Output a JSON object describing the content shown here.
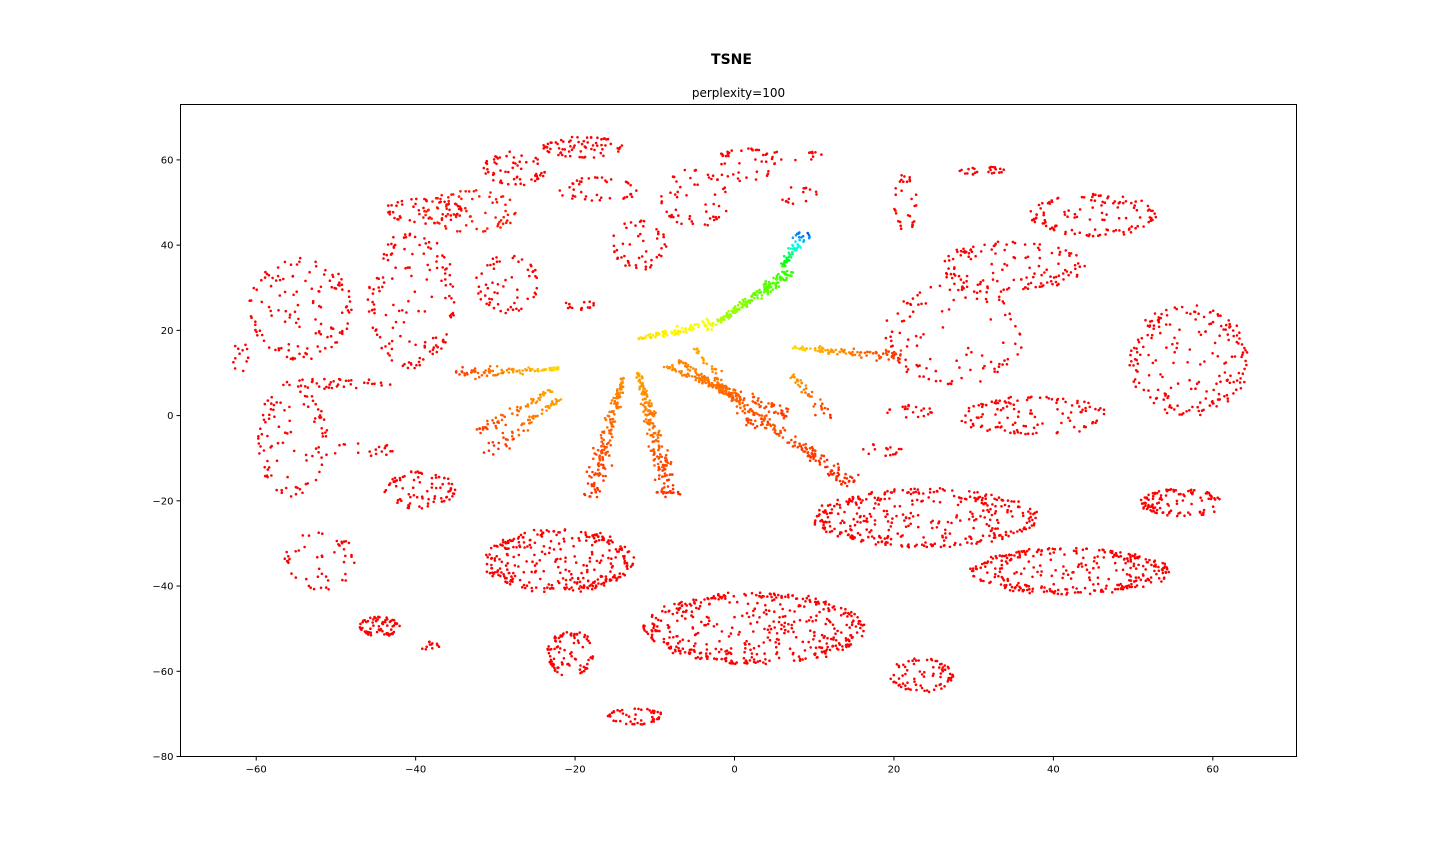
{
  "chart_data": {
    "type": "scatter",
    "title": "TSNE",
    "subtitle": "perplexity=100",
    "xlabel": "",
    "ylabel": "",
    "xlim": [
      -69.5,
      70.5
    ],
    "ylim": [
      -80,
      73
    ],
    "x_ticks": [
      -60,
      -40,
      -20,
      0,
      20,
      40,
      60
    ],
    "x_tick_labels": [
      "−60",
      "−40",
      "−20",
      "0",
      "20",
      "40",
      "60"
    ],
    "y_ticks": [
      60,
      40,
      20,
      0,
      -20,
      -40,
      -60,
      -80
    ],
    "y_tick_labels": [
      "60",
      "40",
      "20",
      "0",
      "−20",
      "−40",
      "−60",
      "−80"
    ],
    "grid": false,
    "legend": "none",
    "colormap": "rainbow (red = low value, violet = high value)",
    "colors": {
      "dominant": "#ff0000",
      "mid": "#ff8000",
      "yellow": "#ffff00",
      "green": "#40ff00",
      "cyan": "#00ffff",
      "violet": "#4000ff"
    },
    "clusters": [
      {
        "x": -54.5,
        "y": 25,
        "w": 6.5,
        "h": 12,
        "n": 130,
        "color_value": 0.0
      },
      {
        "x": -40.5,
        "y": 27,
        "w": 5.5,
        "h": 16,
        "n": 140,
        "color_value": 0.0
      },
      {
        "x": -62.0,
        "y": 14.5,
        "w": 1.0,
        "h": 5,
        "n": 12,
        "color_value": 0.0
      },
      {
        "x": -50.0,
        "y": 7.5,
        "w": 7.0,
        "h": 1.2,
        "n": 40,
        "color_value": 0.0
      },
      {
        "x": -55.5,
        "y": -6,
        "w": 4.5,
        "h": 13,
        "n": 90,
        "color_value": 0.0
      },
      {
        "x": -47.0,
        "y": -8,
        "w": 6.0,
        "h": 1.5,
        "n": 20,
        "color_value": 0.0
      },
      {
        "x": -39.5,
        "y": -17.5,
        "w": 4.5,
        "h": 4.5,
        "n": 80,
        "color_value": 0.0
      },
      {
        "x": -52.0,
        "y": -34,
        "w": 4.5,
        "h": 7,
        "n": 50,
        "color_value": 0.0
      },
      {
        "x": -44.5,
        "y": -49.5,
        "w": 2.5,
        "h": 2.5,
        "n": 70,
        "color_value": 0.0
      },
      {
        "x": -38.5,
        "y": -54,
        "w": 1.5,
        "h": 1.0,
        "n": 12,
        "color_value": 0.0
      },
      {
        "x": -39.0,
        "y": 48,
        "w": 5.0,
        "h": 3,
        "n": 60,
        "color_value": 0.0
      },
      {
        "x": -33.0,
        "y": 48,
        "w": 6.0,
        "h": 5,
        "n": 70,
        "color_value": 0.02
      },
      {
        "x": -27.5,
        "y": 58,
        "w": 4.0,
        "h": 4,
        "n": 60,
        "color_value": 0.0
      },
      {
        "x": -19.0,
        "y": 63,
        "w": 5.0,
        "h": 2.5,
        "n": 70,
        "color_value": 0.0
      },
      {
        "x": -17.0,
        "y": 53,
        "w": 5.0,
        "h": 3,
        "n": 40,
        "color_value": 0.0
      },
      {
        "x": -28.5,
        "y": 31,
        "w": 4.0,
        "h": 7,
        "n": 60,
        "color_value": 0.0
      },
      {
        "x": -19.5,
        "y": 26,
        "w": 2.0,
        "h": 1.2,
        "n": 15,
        "color_value": 0.0
      },
      {
        "x": -12.0,
        "y": 40,
        "w": 3.5,
        "h": 6,
        "n": 50,
        "color_value": 0.0
      },
      {
        "x": -5.0,
        "y": 51,
        "w": 4.5,
        "h": 7,
        "n": 55,
        "color_value": 0.0
      },
      {
        "x": 1.5,
        "y": 59,
        "w": 4.0,
        "h": 4,
        "n": 40,
        "color_value": 0.0
      },
      {
        "x": 7.5,
        "y": 61,
        "w": 4.0,
        "h": 1.2,
        "n": 15,
        "color_value": 0.0
      },
      {
        "x": 8.0,
        "y": 52,
        "w": 2.5,
        "h": 2.5,
        "n": 15,
        "color_value": 0.0
      },
      {
        "x": 27.5,
        "y": 19,
        "w": 9.0,
        "h": 12,
        "n": 110,
        "color_value": 0.0
      },
      {
        "x": 35.0,
        "y": 35,
        "w": 9.0,
        "h": 6,
        "n": 130,
        "color_value": 0.0
      },
      {
        "x": 45.0,
        "y": 47,
        "w": 8.0,
        "h": 5,
        "n": 120,
        "color_value": 0.0
      },
      {
        "x": 31.0,
        "y": 57.5,
        "w": 3.0,
        "h": 1.0,
        "n": 25,
        "color_value": 0.0
      },
      {
        "x": 21.5,
        "y": 50,
        "w": 1.5,
        "h": 7,
        "n": 30,
        "color_value": 0.0
      },
      {
        "x": 57.0,
        "y": 13,
        "w": 7.5,
        "h": 13,
        "n": 200,
        "color_value": 0.0
      },
      {
        "x": 37.5,
        "y": 0,
        "w": 9.5,
        "h": 4.5,
        "n": 120,
        "color_value": 0.0
      },
      {
        "x": 56.0,
        "y": -20.5,
        "w": 5.0,
        "h": 3.5,
        "n": 110,
        "color_value": 0.0
      },
      {
        "x": 24.0,
        "y": -24,
        "w": 14.0,
        "h": 7,
        "n": 380,
        "color_value": 0.0
      },
      {
        "x": 42.0,
        "y": -36.5,
        "w": 12.5,
        "h": 5.5,
        "n": 320,
        "color_value": 0.0
      },
      {
        "x": 2.5,
        "y": -50,
        "w": 14.0,
        "h": 8.5,
        "n": 460,
        "color_value": 0.0
      },
      {
        "x": -22.0,
        "y": -34,
        "w": 9.5,
        "h": 7.5,
        "n": 320,
        "color_value": 0.0
      },
      {
        "x": -20.5,
        "y": -56,
        "w": 3.0,
        "h": 5.5,
        "n": 90,
        "color_value": 0.0
      },
      {
        "x": -12.5,
        "y": -70.5,
        "w": 3.5,
        "h": 2.0,
        "n": 50,
        "color_value": 0.0
      },
      {
        "x": 23.5,
        "y": -61,
        "w": 4.0,
        "h": 4.0,
        "n": 80,
        "color_value": 0.0
      },
      {
        "x": 22.0,
        "y": 1,
        "w": 3.0,
        "h": 1.5,
        "n": 20,
        "color_value": 0.0
      },
      {
        "x": 18.5,
        "y": -8,
        "w": 2.5,
        "h": 1.5,
        "n": 15,
        "color_value": 0.0
      }
    ],
    "arms": [
      {
        "from": [
          -22,
          11
        ],
        "to": [
          -35,
          10
        ],
        "n": 90,
        "color_from": 0.2,
        "color_to": 0.05
      },
      {
        "from": [
          -23,
          6
        ],
        "to": [
          -32,
          -4
        ],
        "n": 60,
        "color_from": 0.15,
        "color_to": 0.05
      },
      {
        "from": [
          -22,
          4
        ],
        "to": [
          -31,
          -9
        ],
        "n": 60,
        "color_from": 0.15,
        "color_to": 0.03
      },
      {
        "from": [
          -14,
          9
        ],
        "to": [
          -18,
          -19
        ],
        "n": 160,
        "color_from": 0.13,
        "color_to": 0.04
      },
      {
        "from": [
          -12,
          10
        ],
        "to": [
          -8,
          -19
        ],
        "n": 200,
        "color_from": 0.15,
        "color_to": 0.04
      },
      {
        "from": [
          -9,
          12
        ],
        "to": [
          7,
          0
        ],
        "n": 120,
        "color_from": 0.13,
        "color_to": 0.05
      },
      {
        "from": [
          -7,
          13
        ],
        "to": [
          15,
          -16
        ],
        "n": 220,
        "color_from": 0.12,
        "color_to": 0.03
      },
      {
        "from": [
          -5,
          16
        ],
        "to": [
          3,
          -3
        ],
        "n": 60,
        "color_from": 0.15,
        "color_to": 0.05
      },
      {
        "from": [
          7,
          16
        ],
        "to": [
          21,
          14
        ],
        "n": 90,
        "color_from": 0.2,
        "color_to": 0.04
      },
      {
        "from": [
          7,
          10
        ],
        "to": [
          12,
          -1
        ],
        "n": 40,
        "color_from": 0.15,
        "color_to": 0.04
      },
      {
        "from": [
          -12,
          18
        ],
        "to": [
          -2,
          22
        ],
        "n": 90,
        "color_from": 0.2,
        "color_to": 0.25
      },
      {
        "from": [
          -2,
          22
        ],
        "to": [
          7,
          34
        ],
        "n": 170,
        "color_from": 0.3,
        "color_to": 0.42
      },
      {
        "from": [
          6,
          35
        ],
        "to": [
          9,
          43
        ],
        "n": 60,
        "color_from": 0.42,
        "color_to": 0.85
      }
    ],
    "total_points_rendered": "≈10000 (estimated)"
  }
}
